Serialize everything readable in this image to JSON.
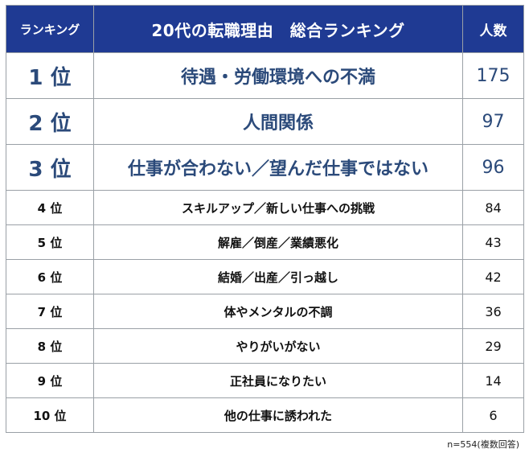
{
  "header": {
    "rank_label": "ランキング",
    "title": "20代の転職理由　総合ランキング",
    "count_label": "人数"
  },
  "rows": [
    {
      "rank": "1 位",
      "reason": "待遇・労働環境への不満",
      "count": "175"
    },
    {
      "rank": "2 位",
      "reason": "人間関係",
      "count": "97"
    },
    {
      "rank": "3 位",
      "reason": "仕事が合わない／望んだ仕事ではない",
      "count": "96"
    },
    {
      "rank": "4 位",
      "reason": "スキルアップ／新しい仕事への挑戦",
      "count": "84"
    },
    {
      "rank": "5 位",
      "reason": "解雇／倒産／業績悪化",
      "count": "43"
    },
    {
      "rank": "6 位",
      "reason": "結婚／出産／引っ越し",
      "count": "42"
    },
    {
      "rank": "7 位",
      "reason": "体やメンタルの不調",
      "count": "36"
    },
    {
      "rank": "8 位",
      "reason": "やりがいがない",
      "count": "29"
    },
    {
      "rank": "9 位",
      "reason": "正社員になりたい",
      "count": "14"
    },
    {
      "rank": "10 位",
      "reason": "他の仕事に誘われた",
      "count": "6"
    }
  ],
  "footnote": "n=554(複数回答)",
  "colors": {
    "header_bg": "#1f3a93",
    "header_text": "#ffffff",
    "top_text": "#2b4a7a"
  }
}
